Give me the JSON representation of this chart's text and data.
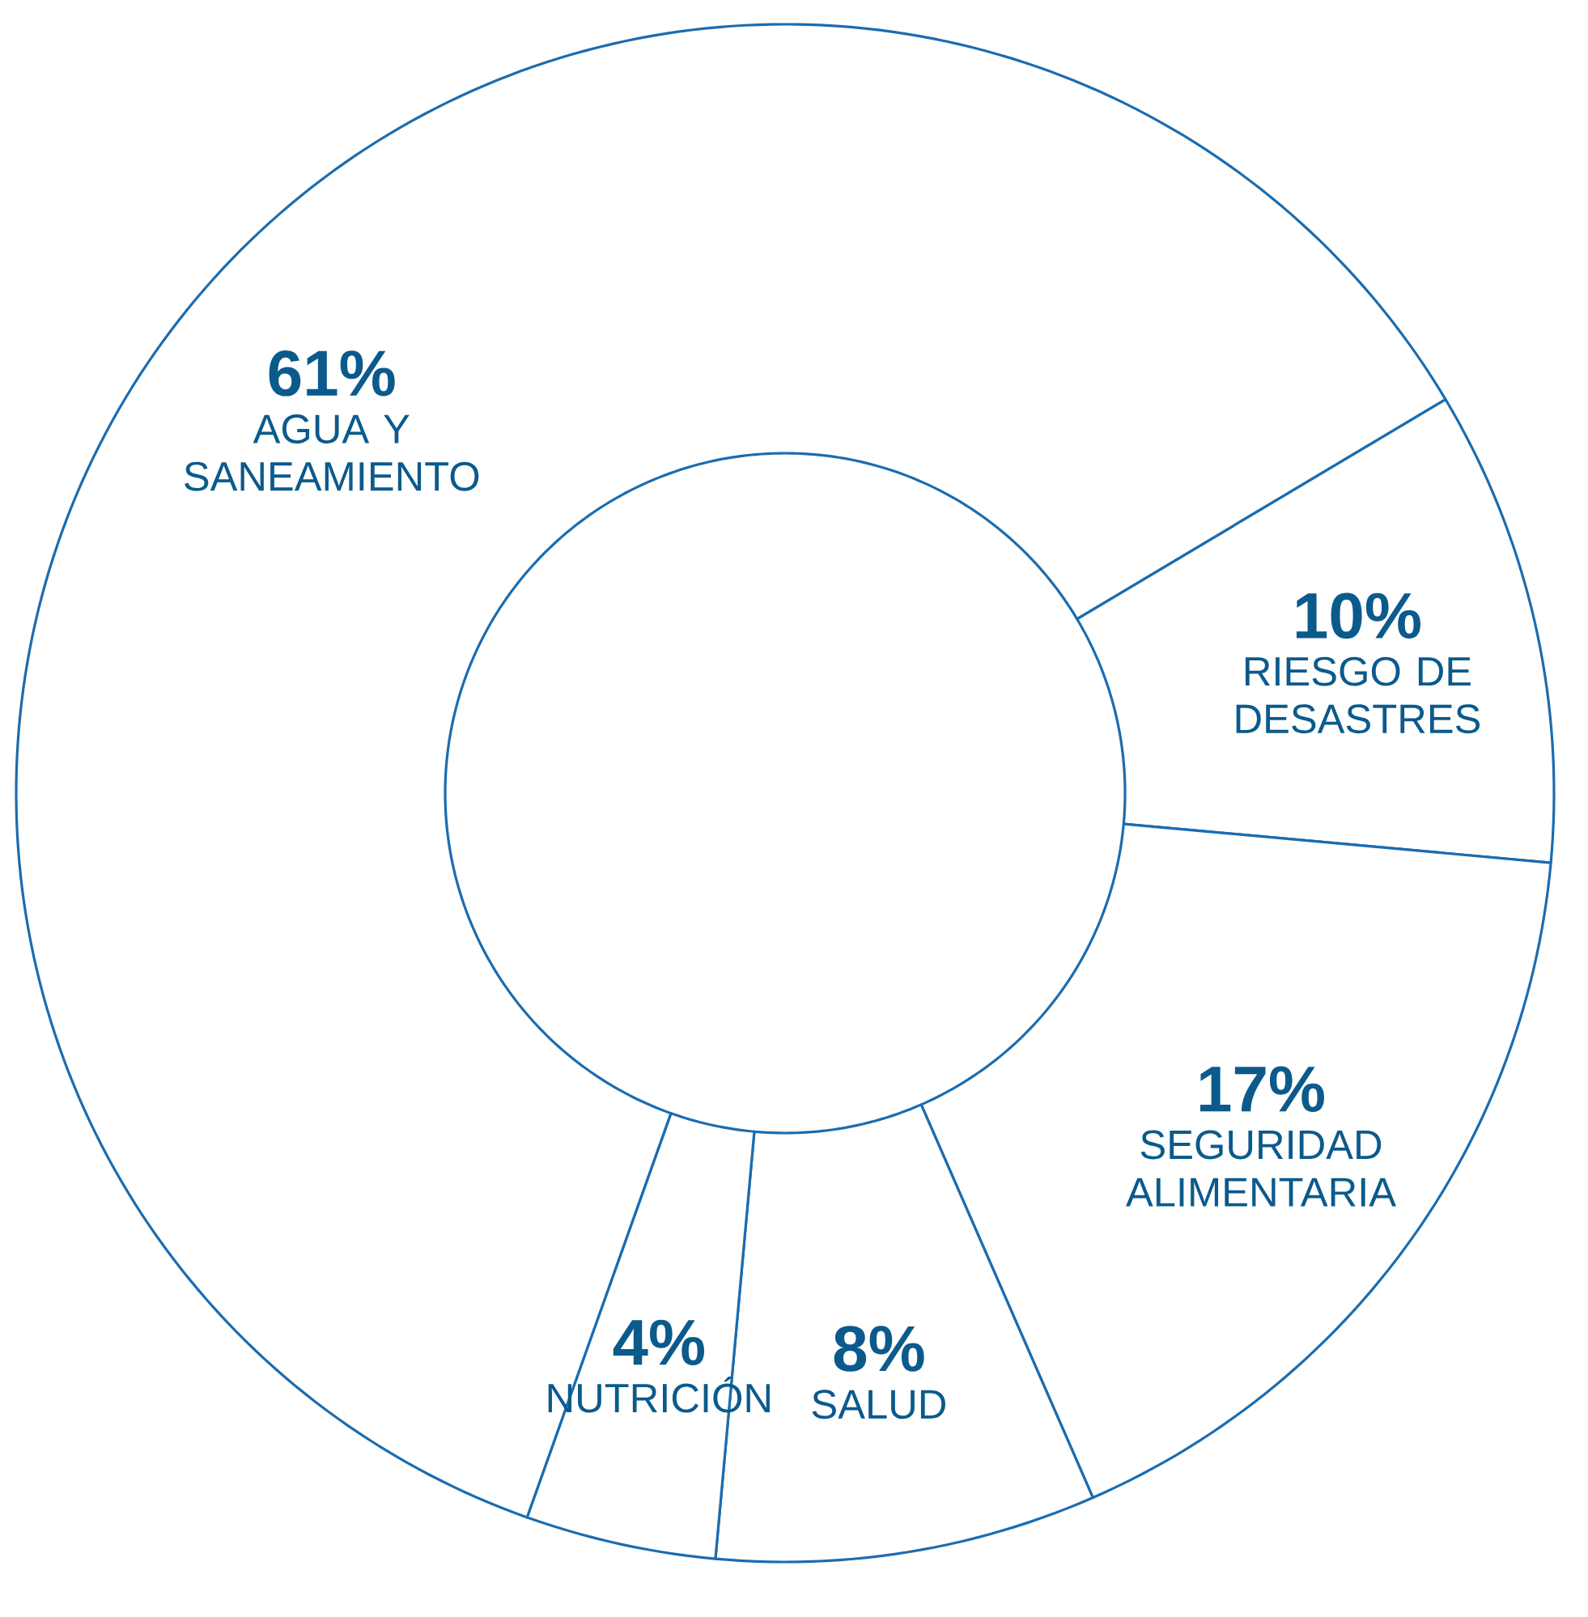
{
  "chart_data": {
    "type": "donut",
    "categories": [
      "AGUA Y SANEAMIENTO",
      "RIESGO DE DESASTRES",
      "SEGURIDAD ALIMENTARIA",
      "SALUD",
      "NUTRICIÓN"
    ],
    "values": [
      61,
      10,
      17,
      8,
      4
    ],
    "value_labels": [
      "61%",
      "10%",
      "17%",
      "8%",
      "4%"
    ],
    "colors": [
      "#ffffff",
      "#ffffff",
      "#ffffff",
      "#ffffff",
      "#ffffff"
    ]
  }
}
